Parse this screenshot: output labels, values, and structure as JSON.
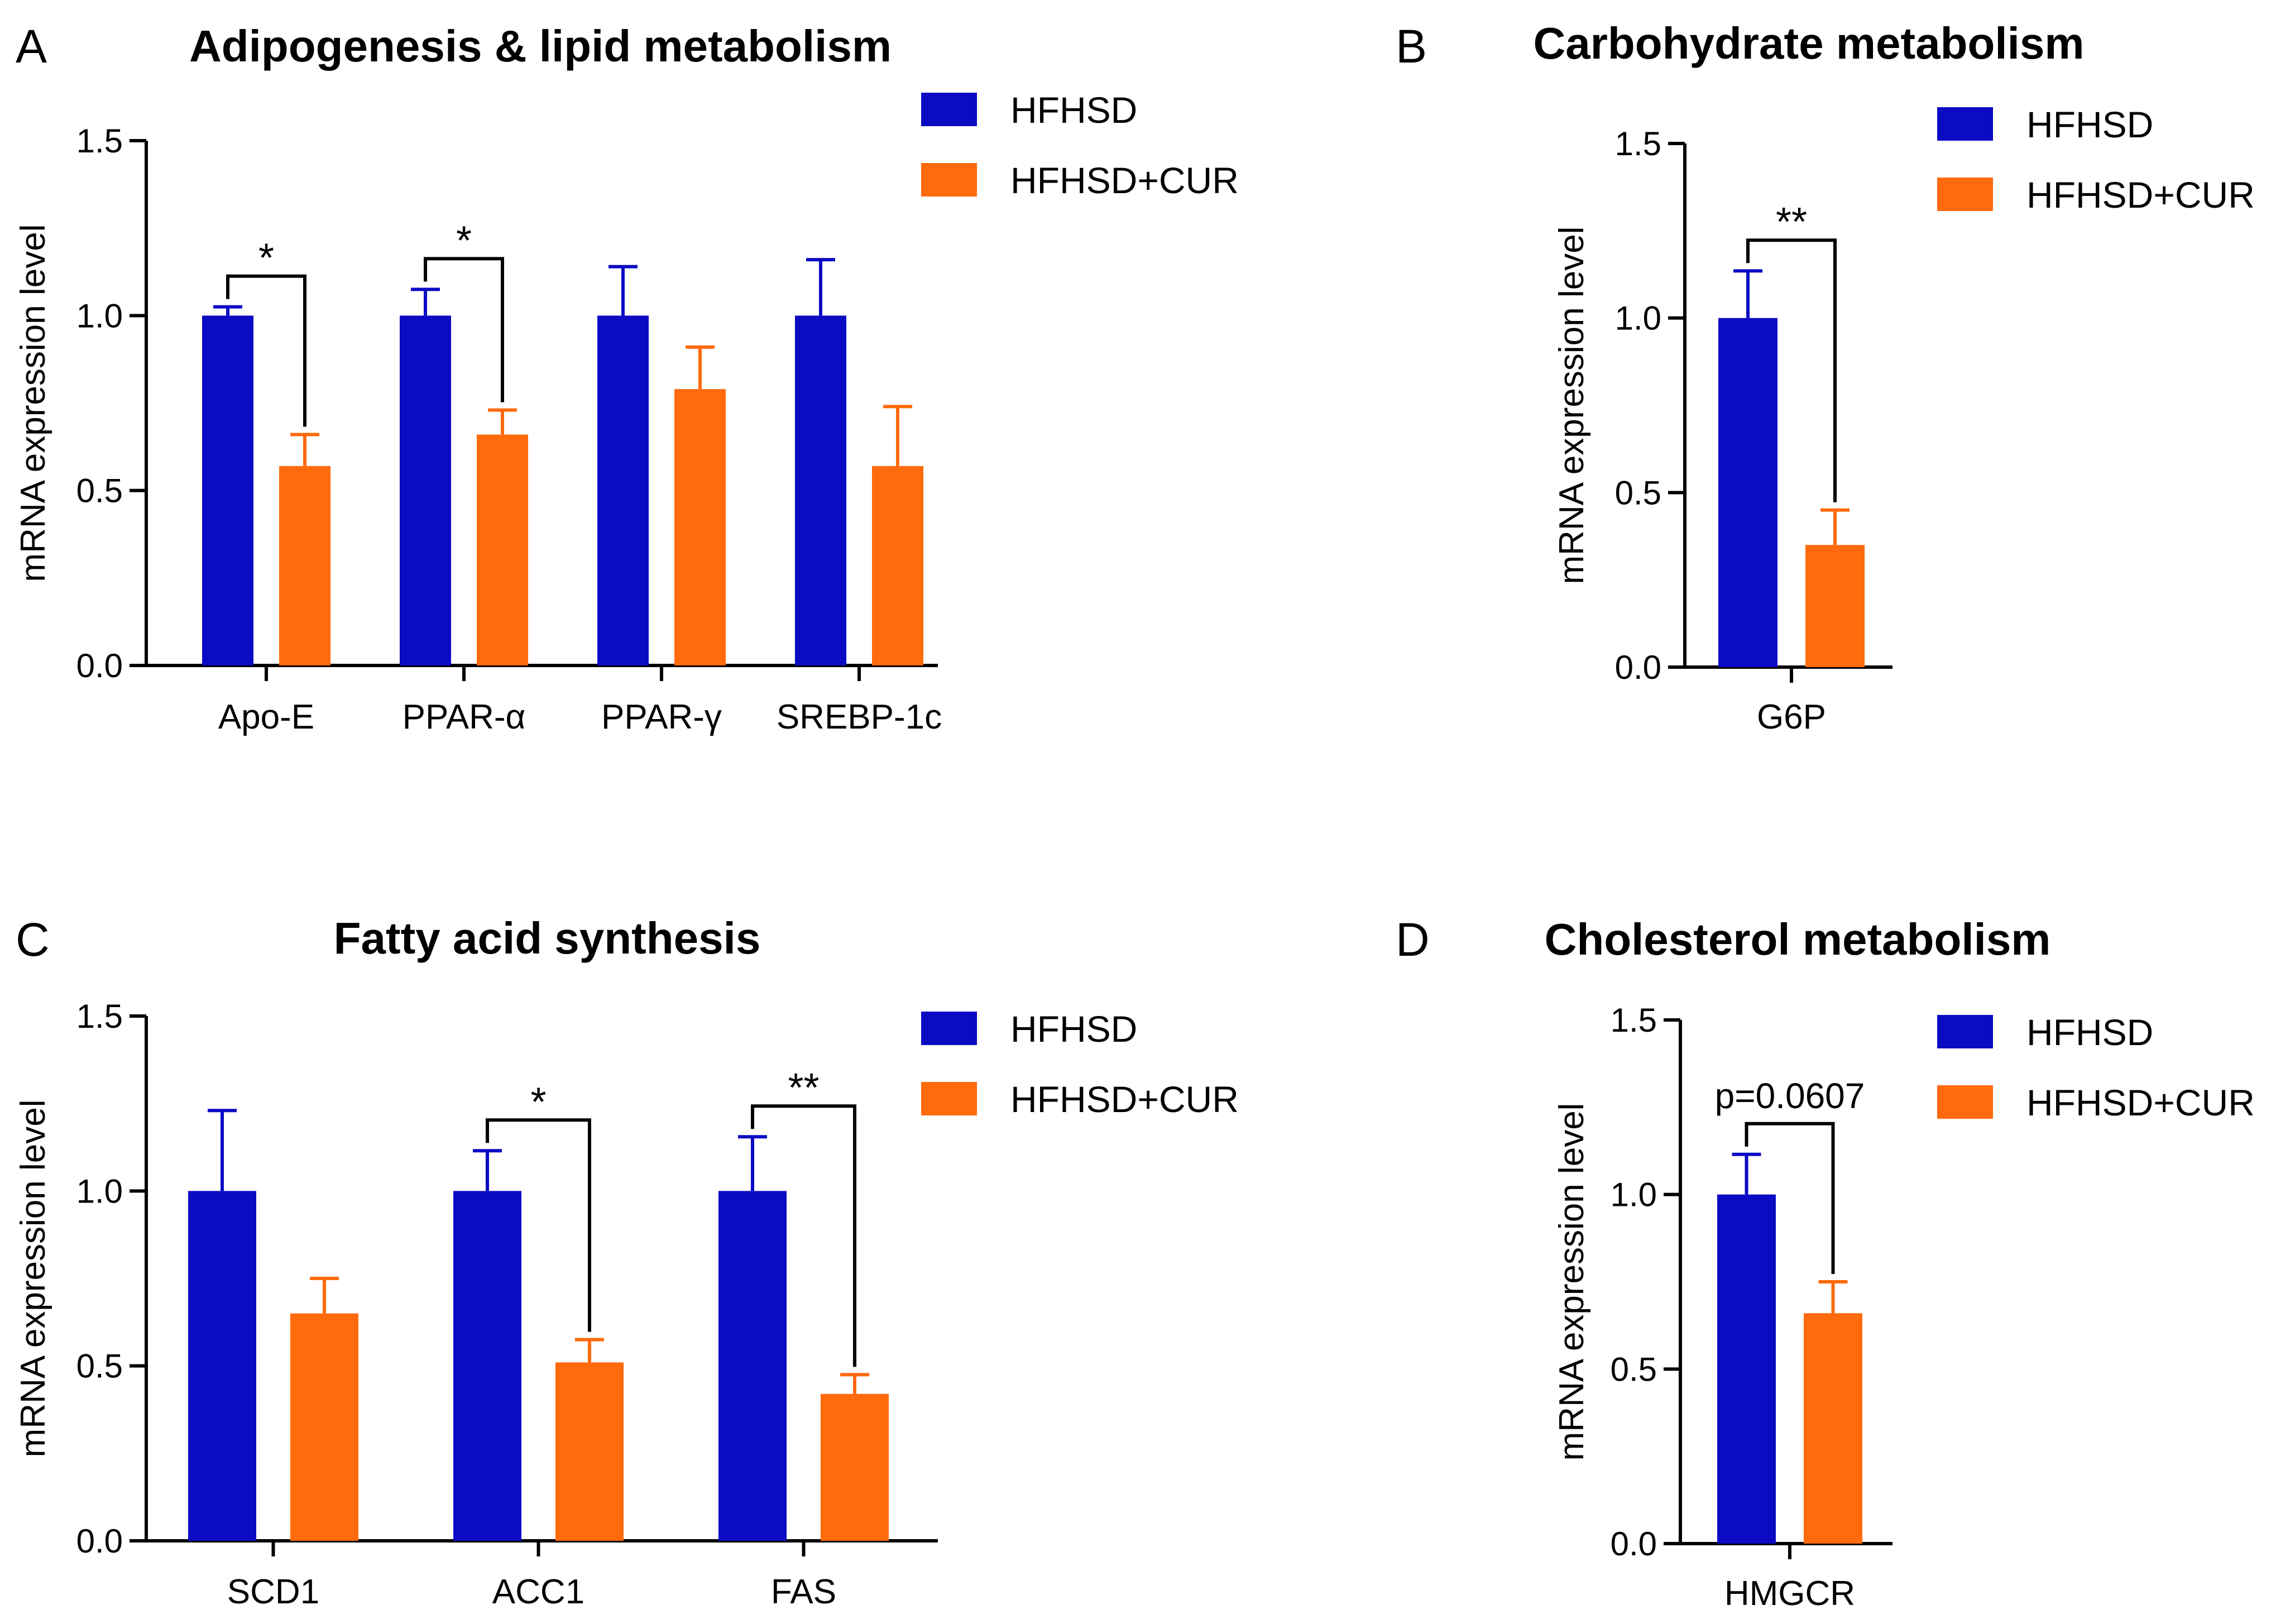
{
  "colors": {
    "HFHSD": "#0B0BC4",
    "HFHSD+CUR": "#FF6A0D",
    "axis": "#000000"
  },
  "chart_data": [
    {
      "panel": "A",
      "type": "bar",
      "title": "Adipogenesis & lipid metabolism",
      "ylabel": "mRNA expression level",
      "ylim": [
        0,
        1.5
      ],
      "yticks": [
        "0.0",
        "0.5",
        "1.0",
        "1.5"
      ],
      "categories": [
        "Apo-E",
        "PPAR-α",
        "PPAR-γ",
        "SREBP-1c"
      ],
      "series": [
        {
          "name": "HFHSD",
          "values": [
            1.0,
            1.0,
            1.0,
            1.0
          ],
          "errors": [
            0.025,
            0.075,
            0.14,
            0.16
          ]
        },
        {
          "name": "HFHSD+CUR",
          "values": [
            0.57,
            0.66,
            0.79,
            0.57
          ],
          "errors": [
            0.09,
            0.07,
            0.12,
            0.17
          ]
        }
      ],
      "significance": [
        {
          "category": 0,
          "label": "*"
        },
        {
          "category": 1,
          "label": "*"
        }
      ]
    },
    {
      "panel": "B",
      "type": "bar",
      "title": "Carbohydrate metabolism",
      "ylabel": "mRNA expression level",
      "ylim": [
        0,
        1.5
      ],
      "yticks": [
        "0.0",
        "0.5",
        "1.0",
        "1.5"
      ],
      "categories": [
        "G6P"
      ],
      "series": [
        {
          "name": "HFHSD",
          "values": [
            1.0
          ],
          "errors": [
            0.135
          ]
        },
        {
          "name": "HFHSD+CUR",
          "values": [
            0.35
          ],
          "errors": [
            0.1
          ]
        }
      ],
      "significance": [
        {
          "category": 0,
          "label": "**"
        }
      ]
    },
    {
      "panel": "C",
      "type": "bar",
      "title": "Fatty acid synthesis",
      "ylabel": "mRNA expression level",
      "ylim": [
        0,
        1.5
      ],
      "yticks": [
        "0.0",
        "0.5",
        "1.0",
        "1.5"
      ],
      "categories": [
        "SCD1",
        "ACC1",
        "FAS"
      ],
      "series": [
        {
          "name": "HFHSD",
          "values": [
            1.0,
            1.0,
            1.0
          ],
          "errors": [
            0.23,
            0.115,
            0.155
          ]
        },
        {
          "name": "HFHSD+CUR",
          "values": [
            0.65,
            0.51,
            0.42
          ],
          "errors": [
            0.1,
            0.065,
            0.055
          ]
        }
      ],
      "significance": [
        {
          "category": 1,
          "label": "*"
        },
        {
          "category": 2,
          "label": "**"
        }
      ]
    },
    {
      "panel": "D",
      "type": "bar",
      "title": "Cholesterol metabolism",
      "ylabel": "mRNA expression level",
      "ylim": [
        0,
        1.5
      ],
      "yticks": [
        "0.0",
        "0.5",
        "1.0",
        "1.5"
      ],
      "categories": [
        "HMGCR"
      ],
      "series": [
        {
          "name": "HFHSD",
          "values": [
            1.0
          ],
          "errors": [
            0.115
          ]
        },
        {
          "name": "HFHSD+CUR",
          "values": [
            0.66
          ],
          "errors": [
            0.09
          ]
        }
      ],
      "significance": [
        {
          "category": 0,
          "label": "p=0.0607"
        }
      ]
    }
  ]
}
